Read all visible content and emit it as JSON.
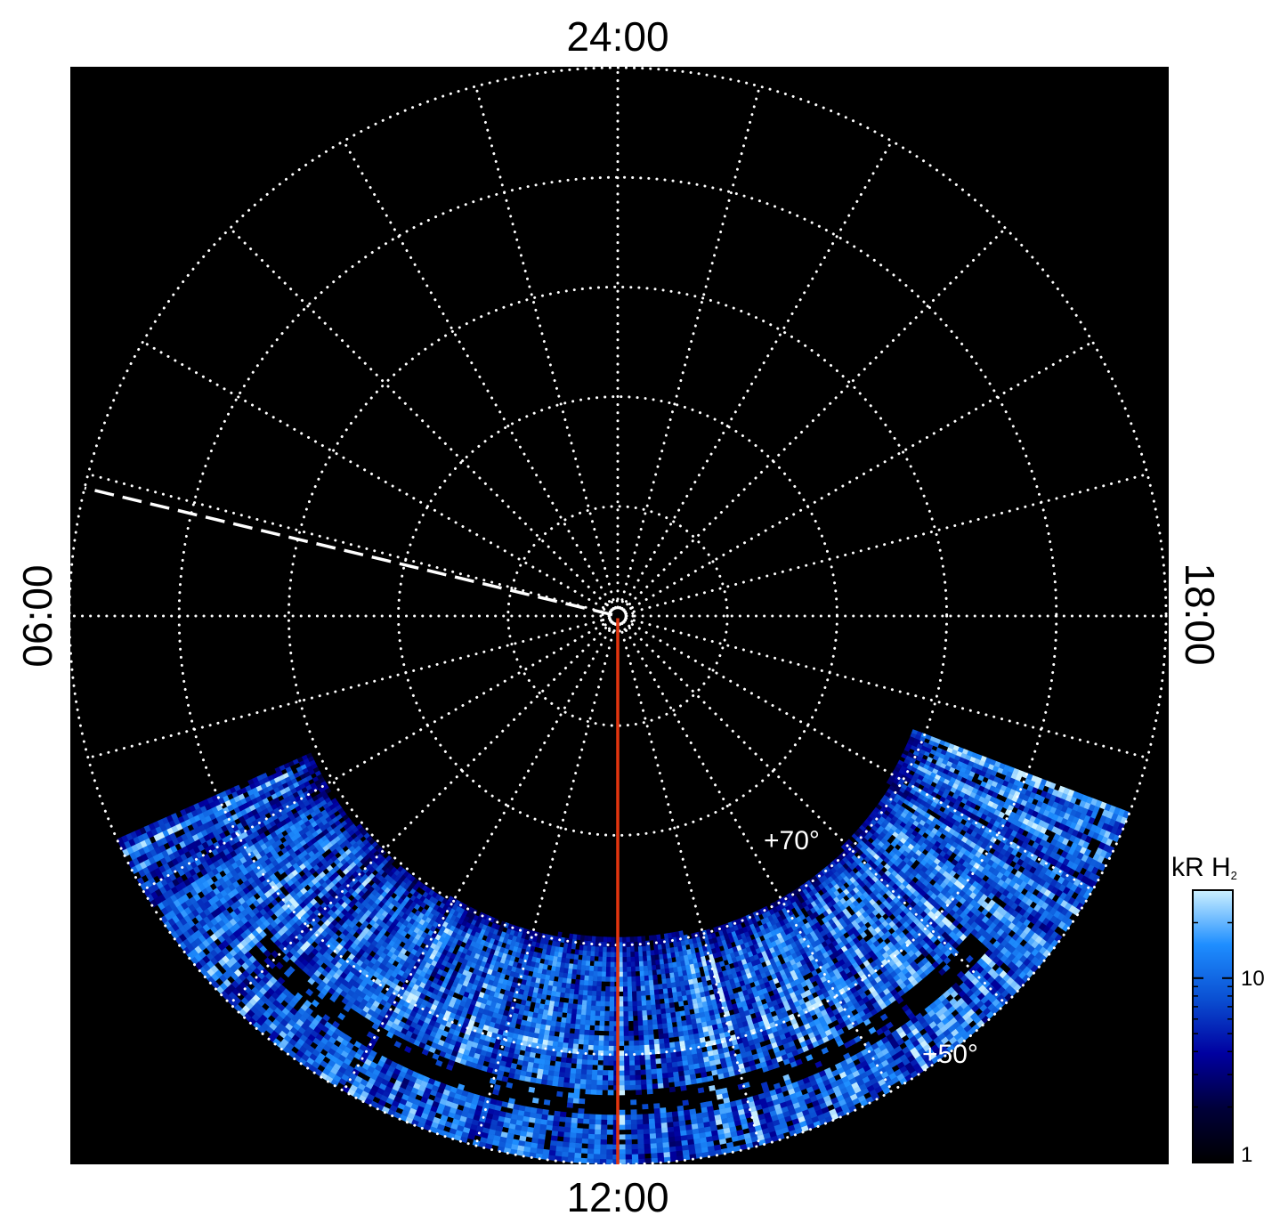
{
  "chart_data": {
    "type": "heatmap",
    "projection": "polar",
    "title": "",
    "local_time_labels": {
      "top": "24:00",
      "bottom": "12:00",
      "left": "06:00",
      "right": "18:00"
    },
    "latitude_labels": [
      "+70°",
      "+50°"
    ],
    "latitude_rings": [
      80,
      70,
      60,
      50,
      40
    ],
    "colorbar": {
      "unit_main": "kR H",
      "unit_sub": "2",
      "scale": "log",
      "range": [
        1,
        30
      ],
      "tick_labels": [
        "10",
        "1"
      ],
      "tick_values": [
        10,
        1
      ],
      "colors": [
        "#000000",
        "#00003a",
        "#0000a0",
        "#0a4fd2",
        "#1e8eff",
        "#ccf0ff"
      ]
    },
    "grid": true,
    "background": "#000000",
    "emission_band": {
      "latitude_range": [
        40,
        60
      ],
      "local_time_range": [
        7.6,
        16.6
      ],
      "note_free": true
    },
    "meridian_line": {
      "color": "#e2350f",
      "local_time": 12,
      "from_latitude": 90,
      "to_latitude": 40
    },
    "dashed_line_color": "#ffffff",
    "dashed_line_local_time": 5.1
  }
}
